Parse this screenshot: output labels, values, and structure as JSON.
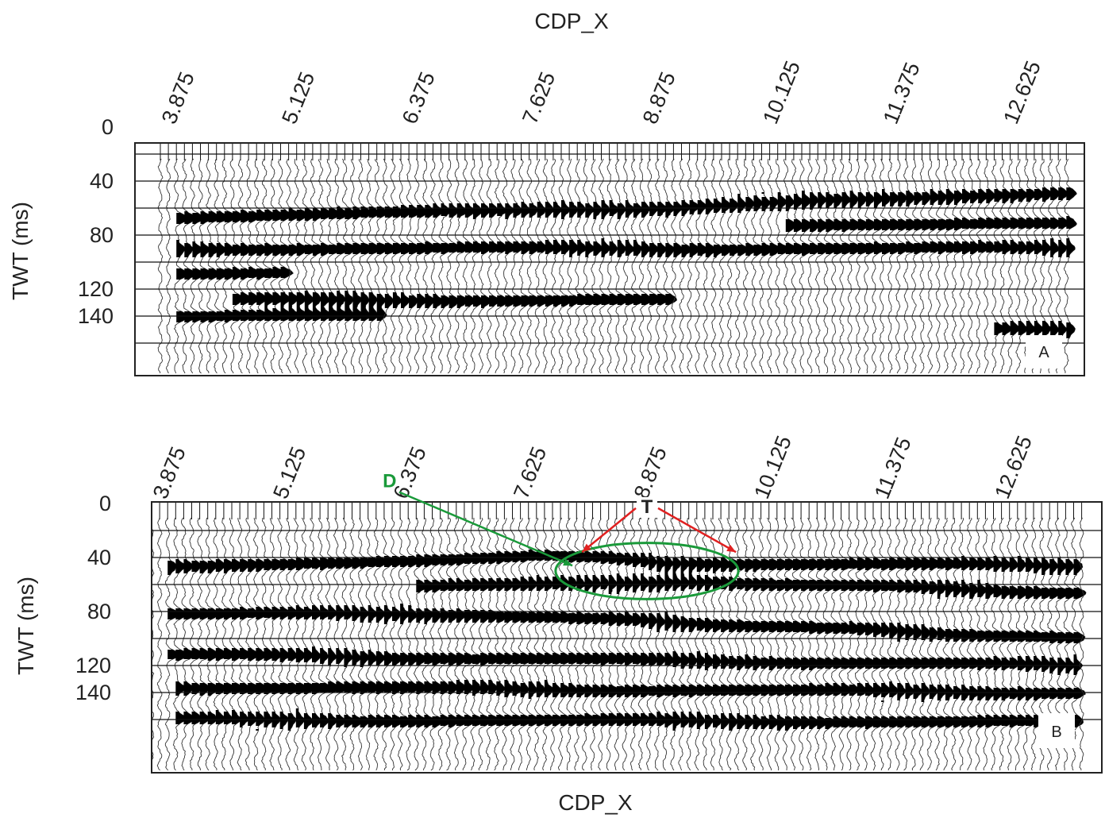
{
  "chart_data": [
    {
      "type": "seismic-wiggle",
      "panel_label": "A",
      "xlabel": "CDP_X",
      "ylabel": "TWT (ms)",
      "x_ticks": [
        "3.875",
        "5.125",
        "6.375",
        "7.625",
        "8.875",
        "10.125",
        "11.375",
        "12.625"
      ],
      "x_tick_values": [
        3.875,
        5.125,
        6.375,
        7.625,
        8.875,
        10.125,
        11.375,
        12.625
      ],
      "y_ticks": [
        "0",
        "40",
        "80",
        "120",
        "140"
      ],
      "y_tick_values": [
        0,
        40,
        80,
        120,
        140
      ],
      "xlim": [
        3.65,
        13.3
      ],
      "ylim": [
        0,
        170
      ],
      "grid": true,
      "reflectors": [
        {
          "x": [
            3.875,
            6.0,
            8.875,
            10.5,
            13.3
          ],
          "twt": [
            68,
            64,
            60,
            54,
            48
          ]
        },
        {
          "x": [
            10.2,
            13.3
          ],
          "twt": [
            72,
            72
          ]
        },
        {
          "x": [
            3.875,
            13.3
          ],
          "twt": [
            90,
            90
          ]
        },
        {
          "x": [
            3.875,
            5.0
          ],
          "twt": [
            108,
            108
          ]
        },
        {
          "x": [
            4.5,
            9.0
          ],
          "twt": [
            128,
            128
          ]
        },
        {
          "x": [
            3.875,
            6.0
          ],
          "twt": [
            140,
            140
          ]
        },
        {
          "x": [
            12.4,
            13.3
          ],
          "twt": [
            150,
            150
          ]
        }
      ]
    },
    {
      "type": "seismic-wiggle",
      "panel_label": "B",
      "xlabel": "CDP_X",
      "ylabel": "TWT (ms)",
      "x_ticks": [
        "3.875",
        "5.125",
        "6.375",
        "7.625",
        "8.875",
        "10.125",
        "11.375",
        "12.625"
      ],
      "x_tick_values": [
        3.875,
        5.125,
        6.375,
        7.625,
        8.875,
        10.125,
        11.375,
        12.625
      ],
      "y_ticks": [
        "0",
        "40",
        "80",
        "120",
        "140"
      ],
      "y_tick_values": [
        0,
        40,
        80,
        120,
        140
      ],
      "xlim": [
        3.75,
        13.3
      ],
      "ylim": [
        0,
        170
      ],
      "grid": true,
      "reflectors": [
        {
          "x": [
            3.875,
            6.5,
            7.8,
            9.0,
            13.3
          ],
          "twt": [
            46,
            42,
            38,
            44,
            46
          ]
        },
        {
          "x": [
            6.5,
            9.5,
            13.3
          ],
          "twt": [
            62,
            58,
            66
          ]
        },
        {
          "x": [
            3.875,
            7.0,
            13.3
          ],
          "twt": [
            82,
            82,
            100
          ]
        },
        {
          "x": [
            3.875,
            13.3
          ],
          "twt": [
            112,
            120
          ]
        },
        {
          "x": [
            4.0,
            13.3
          ],
          "twt": [
            136,
            140
          ]
        },
        {
          "x": [
            4.0,
            13.3
          ],
          "twt": [
            160,
            162
          ]
        }
      ],
      "annotations": [
        {
          "label": "D",
          "color": "#1a9a3a",
          "at": [
            6.2,
            -12
          ],
          "points_to": [
            8.1,
            46
          ]
        },
        {
          "label": "T",
          "color": "#222222",
          "at": [
            8.875,
            7
          ],
          "arrow_color": "#e02020",
          "points_to": [
            [
              8.2,
              36
            ],
            [
              9.8,
              36
            ]
          ]
        }
      ],
      "ellipse": {
        "color": "#1a9a3a",
        "center": [
          8.875,
          50
        ],
        "rx": 0.95,
        "ry": 13
      }
    }
  ]
}
